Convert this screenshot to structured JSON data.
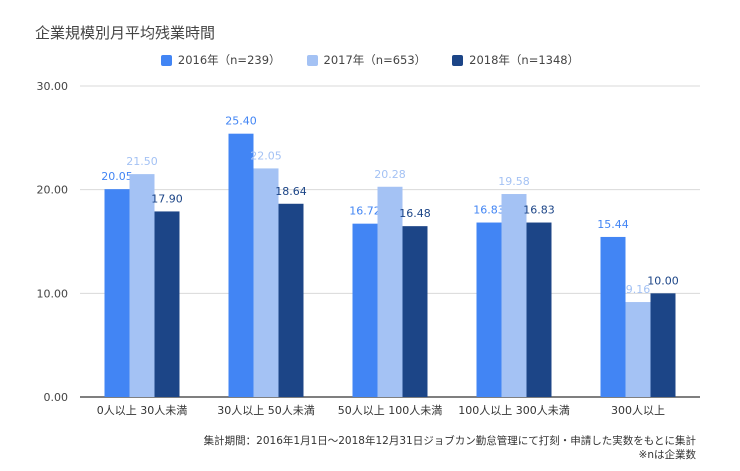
{
  "chart_data": {
    "type": "bar",
    "title": "企業規模別月平均残業時間",
    "categories": [
      "0人以上 30人未満",
      "30人以上 50人未満",
      "50人以上 100人未満",
      "100人以上 300人未満",
      "300人以上"
    ],
    "series": [
      {
        "name": "2016年（n=239）",
        "color": "#4285f4",
        "values": [
          20.05,
          25.4,
          16.72,
          16.83,
          15.44
        ]
      },
      {
        "name": "2017年（n=653）",
        "color": "#a4c2f4",
        "values": [
          21.5,
          22.05,
          20.28,
          19.58,
          9.16
        ]
      },
      {
        "name": "2018年（n=1348）",
        "color": "#1c4587",
        "values": [
          17.9,
          18.64,
          16.48,
          16.83,
          10.0
        ]
      }
    ],
    "ylim": [
      0,
      30
    ],
    "yticks": [
      0,
      10,
      20,
      30
    ],
    "ytick_labels": [
      "0.00",
      "10.00",
      "20.00",
      "30.00"
    ],
    "grid": true,
    "legend": "top-center",
    "xlabel": "",
    "ylabel": ""
  },
  "footnote": {
    "line1": "集計期間：2016年1月1日〜2018年12月31日ジョブカン勤怠管理にて打刻・申請した実数をもとに集計",
    "line2": "※nは企業数"
  }
}
